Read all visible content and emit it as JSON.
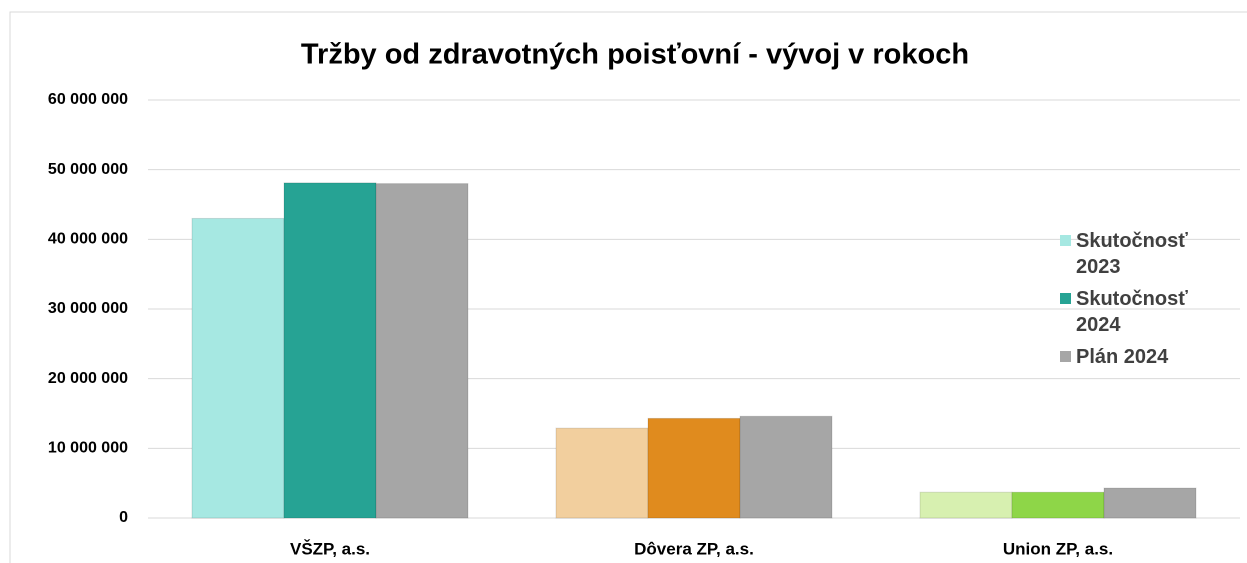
{
  "chart_data": {
    "type": "bar",
    "title": "Tržby od zdravotných poisťovní - vývoj v rokoch",
    "categories": [
      "VŠZP, a.s.",
      "Dôvera ZP, a.s.",
      "Union ZP, a.s."
    ],
    "series": [
      {
        "name": "Skutočnosť 2023",
        "colors": [
          "#a6e8e2",
          "#f2cf9e",
          "#d7f0b0"
        ],
        "values": [
          43000000,
          12900000,
          3700000
        ]
      },
      {
        "name": "Skutočnosť 2024",
        "colors": [
          "#26a394",
          "#e08b1e",
          "#8ed648"
        ],
        "values": [
          48100000,
          14300000,
          3700000
        ]
      },
      {
        "name": "Plán 2024",
        "colors": [
          "#a6a6a6",
          "#a6a6a6",
          "#a6a6a6"
        ],
        "values": [
          48000000,
          14600000,
          4300000
        ]
      }
    ],
    "ylim": [
      0,
      60000000
    ],
    "yticks": [
      0,
      {
        "value": 10000000,
        "label": "10 000 000"
      },
      {
        "value": 20000000,
        "label": "20 000 000"
      },
      {
        "value": 30000000,
        "label": "30 000 000"
      },
      {
        "value": 40000000,
        "label": "40 000 000"
      },
      {
        "value": 50000000,
        "label": "50 000 000"
      },
      {
        "value": 60000000,
        "label": "60 000 000"
      }
    ],
    "grid": true
  }
}
